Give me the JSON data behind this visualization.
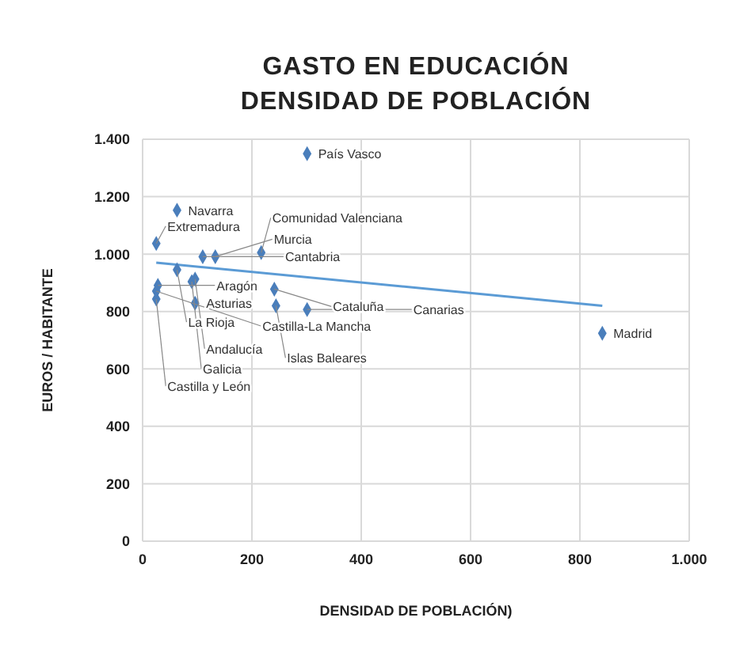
{
  "chart_data": {
    "type": "scatter",
    "title": "GASTO EN EDUCACIÓN",
    "subtitle": "DENSIDAD DE POBLACIÓN",
    "xlabel": "DENSIDAD DE POBLACIÓN)",
    "ylabel": "EUROS / HABITANTE",
    "series": [
      {
        "type": "scatter",
        "color": "#4a7ebb",
        "marker": "diamond",
        "x": [
          301,
          63,
          25,
          110,
          133,
          217,
          63,
          96,
          90,
          28,
          25,
          25,
          96,
          241,
          244,
          301,
          841
        ],
        "values": [
          1350,
          1153,
          1037,
          991,
          991,
          1005,
          945,
          913,
          904,
          891,
          871,
          843,
          829,
          878,
          820,
          807,
          724
        ]
      },
      {
        "type": "line",
        "marker": "none",
        "color": "#5b9bd5",
        "x": [
          25,
          841
        ],
        "values": [
          970,
          820
        ]
      }
    ],
    "annotations": [
      {
        "text": "País Vasco",
        "x": 301,
        "y": 1350
      },
      {
        "text": "Navarra",
        "x": 63,
        "y": 1153
      },
      {
        "text": "Extremadura",
        "x": 25,
        "y": 1037
      },
      {
        "text": "Cantabria",
        "x": 110,
        "y": 991
      },
      {
        "text": "Murcia",
        "x": 133,
        "y": 991
      },
      {
        "text": "Comunidad Valenciana",
        "x": 217,
        "y": 1005
      },
      {
        "text": "La Rioja",
        "x": 63,
        "y": 945
      },
      {
        "text": "Andalucía",
        "x": 96,
        "y": 913
      },
      {
        "text": "Galicia",
        "x": 90,
        "y": 904
      },
      {
        "text": "Aragón",
        "x": 28,
        "y": 891
      },
      {
        "text": "Castilla-La Mancha",
        "x": 25,
        "y": 871
      },
      {
        "text": "Castilla y León",
        "x": 25,
        "y": 843
      },
      {
        "text": "Asturias",
        "x": 96,
        "y": 829
      },
      {
        "text": "Cataluña",
        "x": 241,
        "y": 878
      },
      {
        "text": "Islas Baleares",
        "x": 244,
        "y": 820
      },
      {
        "text": "Canarias",
        "x": 301,
        "y": 807
      },
      {
        "text": "Madrid",
        "x": 841,
        "y": 724
      }
    ],
    "xlim": [
      0,
      1000
    ],
    "xticks": [
      0,
      200,
      400,
      600,
      800,
      {
        "value": 1000,
        "label": "1.000"
      }
    ],
    "ylim": [
      0,
      1400
    ],
    "yticks": [
      0,
      200,
      400,
      600,
      800,
      {
        "value": 1000,
        "label": "1.000"
      },
      {
        "value": 1200,
        "label": "1.200"
      },
      {
        "value": 1400,
        "label": "1.400"
      }
    ],
    "grid": true,
    "legend": false
  }
}
